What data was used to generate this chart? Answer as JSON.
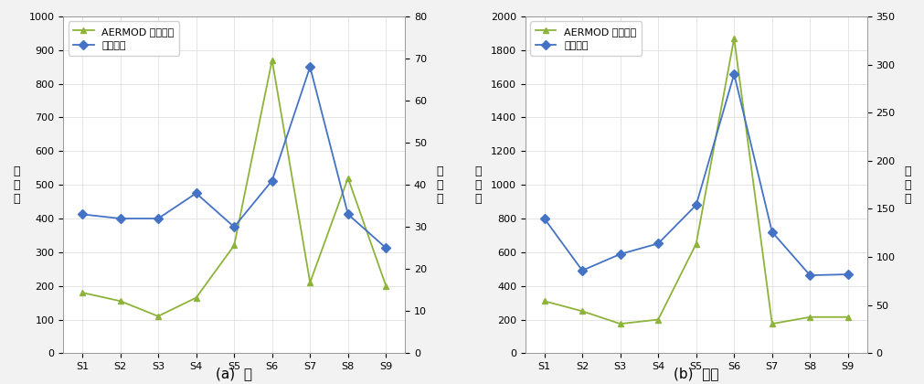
{
  "categories": [
    "S1",
    "S2",
    "S3",
    "S4",
    "S5",
    "S6",
    "S7",
    "S8",
    "S9"
  ],
  "spring": {
    "aermod": [
      180,
      155,
      110,
      165,
      320,
      870,
      210,
      520,
      200
    ],
    "measured": [
      33,
      32,
      32,
      38,
      30,
      41,
      68,
      33,
      25
    ],
    "left_ylim": [
      0,
      1000
    ],
    "right_ylim": [
      0,
      80
    ],
    "left_yticks": [
      0,
      100,
      200,
      300,
      400,
      500,
      600,
      700,
      800,
      900,
      1000
    ],
    "right_yticks": [
      0,
      10,
      20,
      30,
      40,
      50,
      60,
      70,
      80
    ],
    "subtitle": "(a)  봄"
  },
  "fall": {
    "aermod": [
      310,
      250,
      175,
      200,
      650,
      1870,
      175,
      215,
      215
    ],
    "measured": [
      140,
      86,
      103,
      114,
      154,
      290,
      126,
      81,
      82
    ],
    "left_ylim": [
      0,
      2000
    ],
    "right_ylim": [
      0,
      350
    ],
    "left_yticks": [
      0,
      200,
      400,
      600,
      800,
      1000,
      1200,
      1400,
      1600,
      1800,
      2000
    ],
    "right_yticks": [
      0,
      50,
      100,
      150,
      200,
      250,
      300,
      350
    ],
    "subtitle": "(b)  가을"
  },
  "aermod_color": "#8DB33A",
  "measured_color": "#4472C4",
  "aermod_label": "AERMOD 모델결과",
  "measured_label": "실측결과",
  "left_ylabel": "모\n델\n값",
  "right_ylabel": "실\n측\n값",
  "marker_aermod": "^",
  "marker_measured": "D",
  "linewidth": 1.3,
  "markersize": 5,
  "bg_color": "#FFFFFF",
  "fig_bg_color": "#F2F2F2",
  "grid_color": "#E0E0E0"
}
